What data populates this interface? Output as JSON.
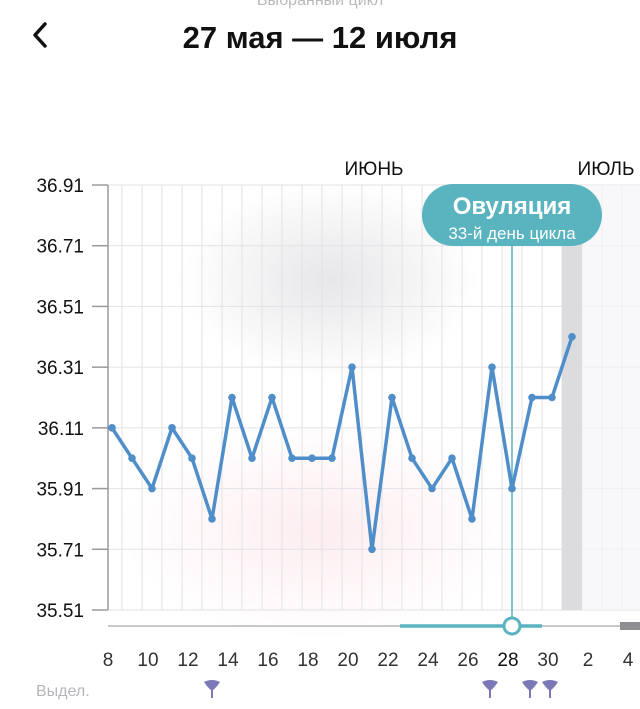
{
  "header": {
    "subtitle": "Выбранный цикл",
    "back_icon": "chevron-left-icon",
    "title": "27 мая — 12 июля"
  },
  "months": {
    "june": "ИЮНЬ",
    "july": "ИЮЛЬ"
  },
  "ovulation": {
    "title": "Овуляция",
    "subtitle": "33-й день цикла"
  },
  "bottom": {
    "discharge_label": "Выдел."
  },
  "colors": {
    "line": "#4f8ec9",
    "accent": "#5ab4bf",
    "grid": "#d9d9dc",
    "axis": "#c8c8cc"
  },
  "chart_data": {
    "type": "line",
    "title": "",
    "xlabel": "",
    "ylabel": "",
    "ylim": [
      35.51,
      36.91
    ],
    "y_ticks": [
      35.51,
      35.71,
      35.91,
      36.11,
      36.31,
      36.51,
      36.71,
      36.91
    ],
    "x_tick_labels": [
      "8",
      "10",
      "12",
      "14",
      "16",
      "18",
      "20",
      "22",
      "24",
      "26",
      "28",
      "30",
      "2",
      "4"
    ],
    "series": [
      {
        "values": [
          36.11,
          36.01,
          35.91,
          36.11,
          36.01,
          35.81,
          36.21,
          36.01,
          36.21,
          36.01,
          36.01,
          36.01,
          36.31,
          35.71,
          36.21,
          36.01,
          35.91,
          36.01,
          35.81,
          36.31,
          35.91,
          36.21,
          36.21,
          36.41
        ]
      }
    ],
    "ovulation_day_label": "28",
    "grid": true
  }
}
